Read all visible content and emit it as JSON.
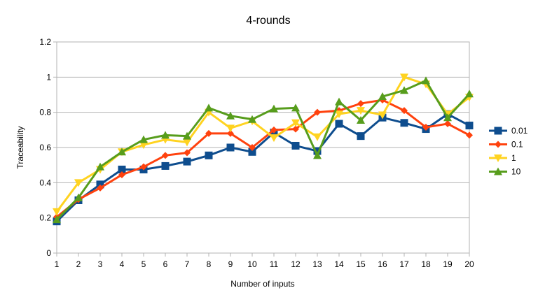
{
  "chart_data": {
    "type": "line",
    "title": "4-rounds",
    "xlabel": "Number of inputs",
    "ylabel": "Traceability",
    "x": [
      1,
      2,
      3,
      4,
      5,
      6,
      7,
      8,
      9,
      10,
      11,
      12,
      13,
      14,
      15,
      16,
      17,
      18,
      19,
      20
    ],
    "x_tick_labels": [
      "1",
      "2",
      "3",
      "4",
      "5",
      "6",
      "7",
      "8",
      "9",
      "10",
      "11",
      "12",
      "13",
      "14",
      "15",
      "16",
      "17",
      "18",
      "19",
      "20"
    ],
    "ylim": [
      0,
      1.2
    ],
    "y_ticks": [
      0,
      0.2,
      0.4,
      0.6,
      0.8,
      1,
      1.2
    ],
    "y_tick_labels": [
      "0",
      "0.2",
      "0.4",
      "0.6",
      "0.8",
      "1",
      "1.2"
    ],
    "grid": true,
    "legend_position": "right",
    "series": [
      {
        "name": "0.01",
        "color": "#0e4d8e",
        "marker": "square",
        "values": [
          0.18,
          0.3,
          0.39,
          0.475,
          0.475,
          0.495,
          0.52,
          0.555,
          0.6,
          0.575,
          0.685,
          0.61,
          0.58,
          0.735,
          0.665,
          0.77,
          0.74,
          0.705,
          0.79,
          0.725
        ]
      },
      {
        "name": "0.1",
        "color": "#ff420e",
        "marker": "diamond",
        "values": [
          0.205,
          0.305,
          0.37,
          0.445,
          0.49,
          0.555,
          0.57,
          0.68,
          0.68,
          0.6,
          0.7,
          0.705,
          0.8,
          0.81,
          0.85,
          0.87,
          0.81,
          0.715,
          0.735,
          0.67
        ]
      },
      {
        "name": "1",
        "color": "#ffd320",
        "marker": "triangle-down",
        "values": [
          0.235,
          0.4,
          0.475,
          0.575,
          0.615,
          0.645,
          0.63,
          0.8,
          0.71,
          0.75,
          0.655,
          0.74,
          0.66,
          0.79,
          0.81,
          0.785,
          1.0,
          0.96,
          0.79,
          0.885
        ]
      },
      {
        "name": "10",
        "color": "#579d1c",
        "marker": "triangle-up",
        "values": [
          0.19,
          0.315,
          0.49,
          0.575,
          0.645,
          0.67,
          0.665,
          0.825,
          0.78,
          0.76,
          0.82,
          0.825,
          0.555,
          0.86,
          0.755,
          0.89,
          0.925,
          0.98,
          0.77,
          0.905
        ]
      }
    ]
  }
}
